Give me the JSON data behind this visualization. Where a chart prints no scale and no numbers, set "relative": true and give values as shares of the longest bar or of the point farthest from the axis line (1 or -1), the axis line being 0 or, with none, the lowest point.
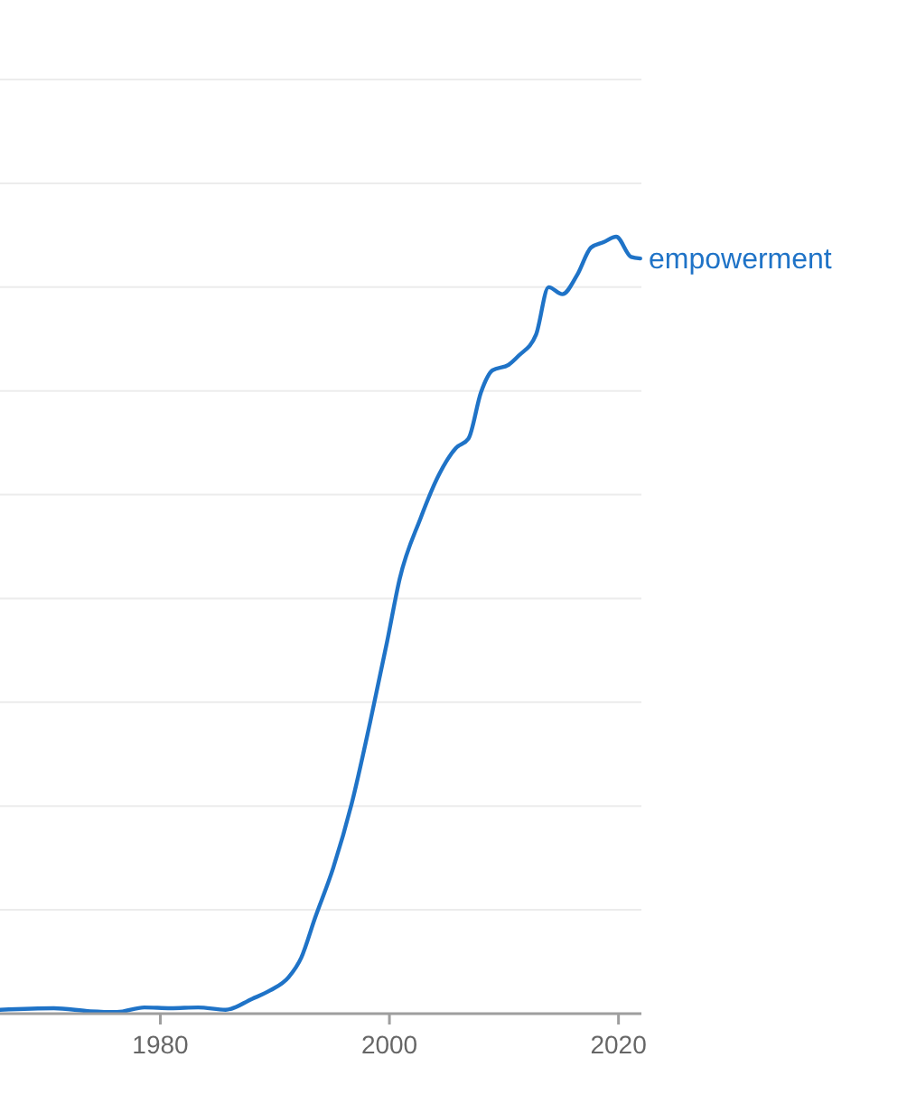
{
  "chart_data": {
    "type": "line",
    "relative": true,
    "xlim": [
      1966,
      2022
    ],
    "xticks": [
      1980,
      2000,
      2020
    ],
    "grid": "y",
    "series": [
      {
        "name": "empowerment",
        "color": "#1f73c7",
        "x": [
          1966,
          1970.7,
          1973.9,
          1976.2,
          1978.6,
          1980.9,
          1983.3,
          1985.7,
          1988,
          1989.6,
          1991.2,
          1992.3,
          1993.5,
          1995.1,
          1996.7,
          1998.3,
          1999.8,
          2000.9,
          2002.7,
          2004.3,
          2005.8,
          2006.9,
          2008,
          2009,
          2010.4,
          2011.3,
          2012.8,
          2013.9,
          2015.1,
          2016.4,
          2017.6,
          2018.7,
          2019.8,
          2021.1,
          2021.9
        ],
        "values": [
          0.005,
          0.007,
          0.003,
          0.002,
          0.008,
          0.007,
          0.008,
          0.005,
          0.019,
          0.03,
          0.047,
          0.072,
          0.123,
          0.188,
          0.27,
          0.374,
          0.479,
          0.56,
          0.637,
          0.693,
          0.728,
          0.74,
          0.8,
          0.828,
          0.835,
          0.847,
          0.874,
          0.935,
          0.926,
          0.951,
          0.986,
          0.993,
          1,
          0.974,
          0.972
        ]
      }
    ]
  }
}
